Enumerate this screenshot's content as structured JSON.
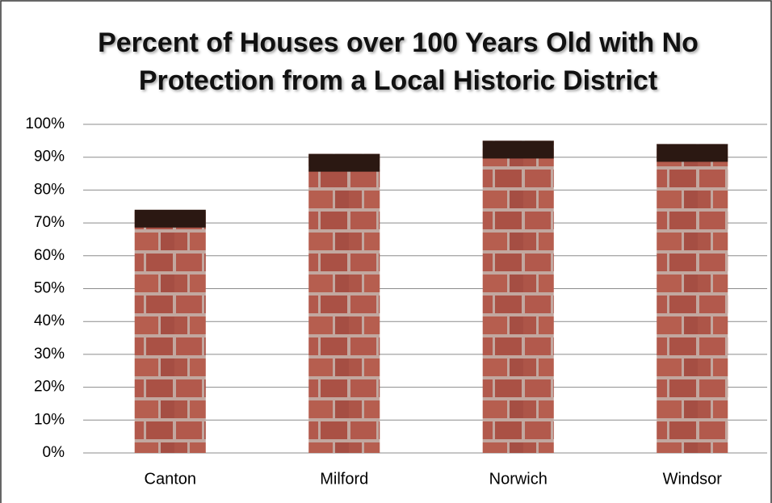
{
  "chart_data": {
    "type": "bar",
    "title": "Percent of Houses over 100 Years Old with No Protection from a Local Historic District",
    "categories": [
      "Canton",
      "Milford",
      "Norwich",
      "Windsor"
    ],
    "values": [
      74,
      91,
      95,
      94
    ],
    "color": "#b0564a",
    "ylim": [
      0,
      100
    ],
    "yticks": [
      {
        "value": 0,
        "label": "0%"
      },
      {
        "value": 10,
        "label": "10%"
      },
      {
        "value": 20,
        "label": "20%"
      },
      {
        "value": 30,
        "label": "30%"
      },
      {
        "value": 40,
        "label": "40%"
      },
      {
        "value": 50,
        "label": "50%"
      },
      {
        "value": 60,
        "label": "60%"
      },
      {
        "value": 70,
        "label": "70%"
      },
      {
        "value": 80,
        "label": "80%"
      },
      {
        "value": 90,
        "label": "90%"
      },
      {
        "value": 100,
        "label": "100%"
      }
    ],
    "grid": true
  }
}
